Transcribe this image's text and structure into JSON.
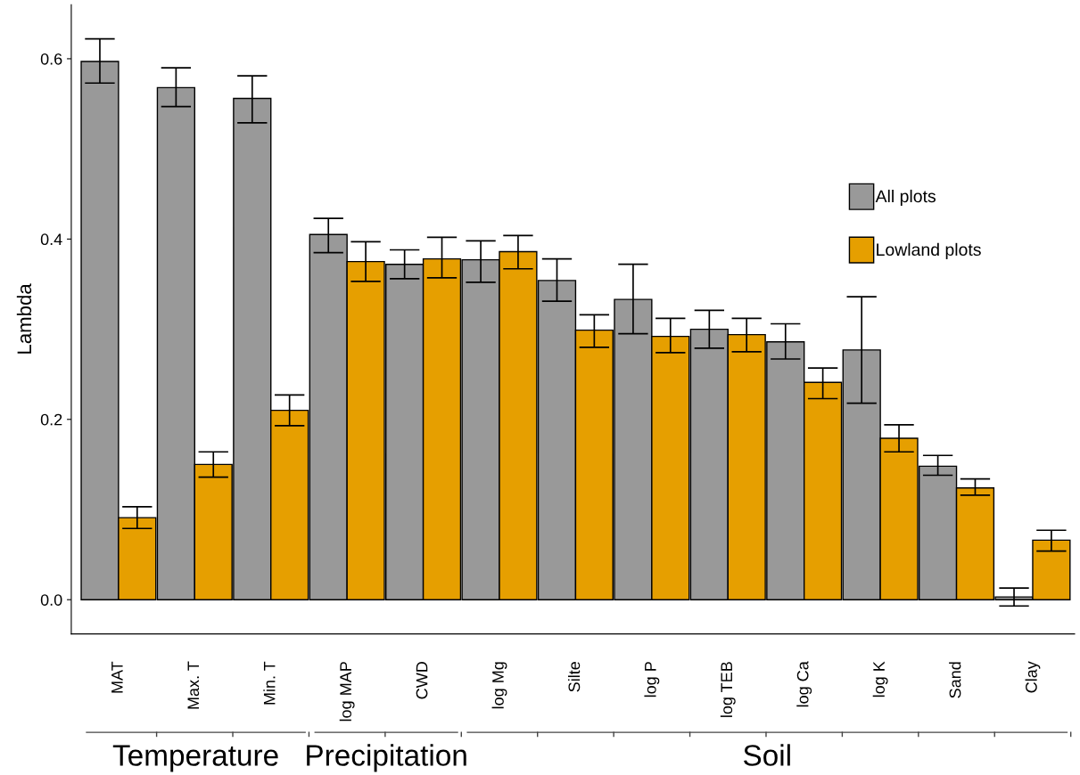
{
  "chart_data": {
    "type": "bar",
    "ylabel": "Lambda",
    "categories": [
      "MAT",
      "Max. T",
      "Min. T",
      "log MAP",
      "CWD",
      "log Mg",
      "Silte",
      "log P",
      "log TEB",
      "log Ca",
      "log K",
      "Sand",
      "Clay"
    ],
    "series": [
      {
        "name": "All plots",
        "color": "#999999",
        "values": [
          0.597,
          0.568,
          0.556,
          0.405,
          0.372,
          0.377,
          0.354,
          0.333,
          0.3,
          0.286,
          0.277,
          0.148,
          0.003
        ],
        "errors": [
          [
            0.573,
            0.622
          ],
          [
            0.547,
            0.59
          ],
          [
            0.529,
            0.581
          ],
          [
            0.385,
            0.423
          ],
          [
            0.356,
            0.388
          ],
          [
            0.352,
            0.398
          ],
          [
            0.331,
            0.378
          ],
          [
            0.295,
            0.372
          ],
          [
            0.279,
            0.321
          ],
          [
            0.267,
            0.306
          ],
          [
            0.218,
            0.336
          ],
          [
            0.138,
            0.16
          ],
          [
            -0.007,
            0.013
          ]
        ]
      },
      {
        "name": "Lowland plots",
        "color": "#e69f00",
        "values": [
          0.091,
          0.15,
          0.21,
          0.375,
          0.378,
          0.386,
          0.299,
          0.292,
          0.294,
          0.241,
          0.179,
          0.124,
          0.066
        ],
        "errors": [
          [
            0.079,
            0.103
          ],
          [
            0.136,
            0.164
          ],
          [
            0.193,
            0.227
          ],
          [
            0.353,
            0.397
          ],
          [
            0.357,
            0.402
          ],
          [
            0.367,
            0.404
          ],
          [
            0.28,
            0.316
          ],
          [
            0.274,
            0.312
          ],
          [
            0.275,
            0.312
          ],
          [
            0.223,
            0.257
          ],
          [
            0.164,
            0.194
          ],
          [
            0.116,
            0.134
          ],
          [
            0.054,
            0.077
          ]
        ]
      }
    ],
    "ylim": [
      -0.038,
      0.66
    ],
    "yticks": [
      {
        "value": 0,
        "label": "0.0"
      },
      {
        "value": 0.2,
        "label": "0.2"
      },
      {
        "value": 0.4,
        "label": "0.4"
      },
      {
        "value": 0.6,
        "label": "0.6"
      }
    ],
    "annotations": [
      "Temperature",
      "Precipitation",
      "Soil"
    ],
    "legend": "top right",
    "grid": false
  }
}
